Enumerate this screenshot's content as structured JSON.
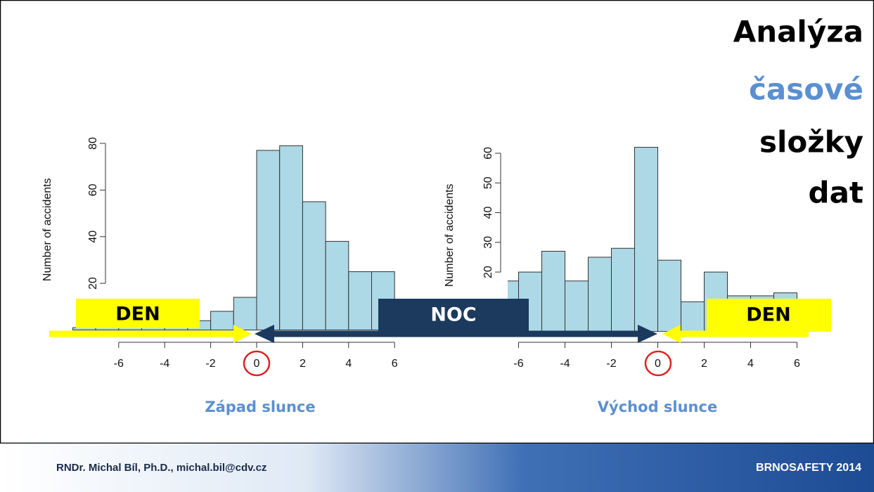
{
  "title_lines": [
    "Analýza",
    "časové",
    "složky",
    "dat"
  ],
  "overlay": {
    "day_left": "DEN",
    "night": "NOC",
    "day_right": "DEN"
  },
  "footer": {
    "author": "RNDr. Michal Bíl, Ph.D., michal.bil@cdv.cz",
    "event": "BRNOSAFETY 2014"
  },
  "chart_data": [
    {
      "type": "histogram",
      "caption": "Západ slunce",
      "y_label": "Number of accidents",
      "color": "#add8e6",
      "bins": [
        -8,
        -7,
        -6,
        -5,
        -4,
        -3,
        -2,
        -1,
        0,
        1,
        2,
        3,
        4,
        5,
        6
      ],
      "values": [
        1,
        1,
        2,
        2,
        3,
        4,
        8,
        14,
        77,
        79,
        55,
        38,
        25,
        25
      ],
      "xlim": [
        -8,
        6.5
      ],
      "xticks": [
        -6,
        -4,
        -2,
        0,
        2,
        4,
        6
      ],
      "ylim": [
        0,
        80
      ],
      "yticks": [
        20,
        40,
        60,
        80
      ]
    },
    {
      "type": "histogram",
      "caption": "Východ slunce",
      "y_label": "Number of accidents",
      "color": "#add8e6",
      "bins": [
        -7,
        -6,
        -5,
        -4,
        -3,
        -2,
        -1,
        0,
        1,
        2,
        3,
        4,
        5,
        6
      ],
      "values": [
        17,
        20,
        27,
        17,
        25,
        28,
        62,
        24,
        10,
        20,
        12,
        12,
        13
      ],
      "xlim": [
        -6.5,
        6.5
      ],
      "xticks": [
        -6,
        -4,
        -2,
        0,
        2,
        4,
        6
      ],
      "ylim": [
        0,
        60
      ],
      "yticks": [
        20,
        30,
        40,
        50,
        60
      ]
    }
  ]
}
